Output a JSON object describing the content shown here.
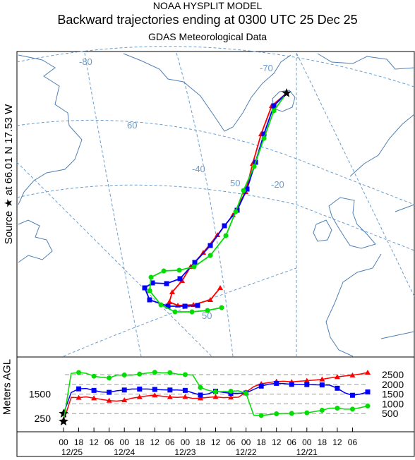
{
  "header": {
    "line1": "NOAA HYSPLIT MODEL",
    "line2": "Backward trajectories ending at 0300 UTC 25 Dec 25",
    "line3": "GDAS Meteorological Data"
  },
  "source_label": "Source ★ at 66.01 N 17.53 W",
  "map": {
    "graticule_labels": [
      "-80",
      "-70",
      "60",
      "-40",
      "50",
      "-20",
      "50"
    ],
    "colors": {
      "coast": "#4f7fb4",
      "graticule": "#6a9ccc",
      "red": "#ff0000",
      "blue": "#0000ff",
      "green": "#00dd00",
      "frame": "#000000"
    }
  },
  "chart_data": {
    "type": "line",
    "title": "Backward trajectories ending at 0300 UTC 25 Dec 25",
    "ylabel": "Meters AGL",
    "ylim": [
      0,
      3000
    ],
    "y_ticks_right": [
      500,
      1000,
      1500,
      2000,
      2500
    ],
    "y_ticks_left": [
      250,
      1500
    ],
    "x_tick_labels": [
      "00",
      "18",
      "12",
      "06",
      "00",
      "18",
      "12",
      "06",
      "00",
      "18",
      "12",
      "06",
      "00",
      "18",
      "12",
      "06",
      "00",
      "18",
      "12",
      "06"
    ],
    "x_date_labels": [
      "12/25",
      "12/24",
      "12/23",
      "12/22",
      "12/21"
    ],
    "hours_back": [
      0,
      3,
      6,
      9,
      12,
      15,
      18,
      21,
      24,
      27,
      30,
      33,
      36,
      39,
      42,
      45,
      48,
      51,
      54,
      57,
      60,
      63,
      66,
      69,
      72,
      75,
      78,
      81,
      84,
      87,
      90,
      93,
      96,
      99,
      102,
      105,
      108,
      111,
      114,
      117,
      120
    ],
    "series": [
      {
        "color": "#ff0000",
        "marker": "triangle",
        "values": [
          100,
          1330,
          1320,
          1360,
          1290,
          1230,
          1170,
          1140,
          1190,
          1290,
          1350,
          1410,
          1440,
          1390,
          1350,
          1330,
          1360,
          1280,
          1290,
          1330,
          1360,
          1320,
          1330,
          1340,
          1600,
          1880,
          2030,
          2090,
          2150,
          2160,
          2130,
          2160,
          2190,
          2220,
          2260,
          2330,
          2380,
          2430,
          2470,
          2530,
          2610
        ]
      },
      {
        "color": "#0000ff",
        "marker": "square",
        "values": [
          500,
          1580,
          1770,
          1790,
          1690,
          1610,
          1590,
          1670,
          1710,
          1760,
          1760,
          1760,
          1740,
          1720,
          1710,
          1710,
          1690,
          1560,
          1450,
          1510,
          1650,
          1590,
          1540,
          1540,
          1560,
          1740,
          1910,
          2010,
          2050,
          2040,
          2000,
          2000,
          1990,
          1980,
          1970,
          1960,
          1800,
          1560,
          1440,
          1500,
          1610
        ]
      },
      {
        "color": "#00dd00",
        "marker": "circle",
        "values": [
          100,
          2560,
          2610,
          2570,
          2420,
          2360,
          2330,
          2470,
          2480,
          2470,
          2530,
          2580,
          2620,
          2590,
          2600,
          2530,
          2500,
          2480,
          1840,
          1700,
          1620,
          1630,
          1650,
          1670,
          1540,
          420,
          400,
          450,
          490,
          510,
          510,
          530,
          540,
          600,
          670,
          780,
          780,
          730,
          730,
          800,
          890
        ]
      }
    ]
  }
}
